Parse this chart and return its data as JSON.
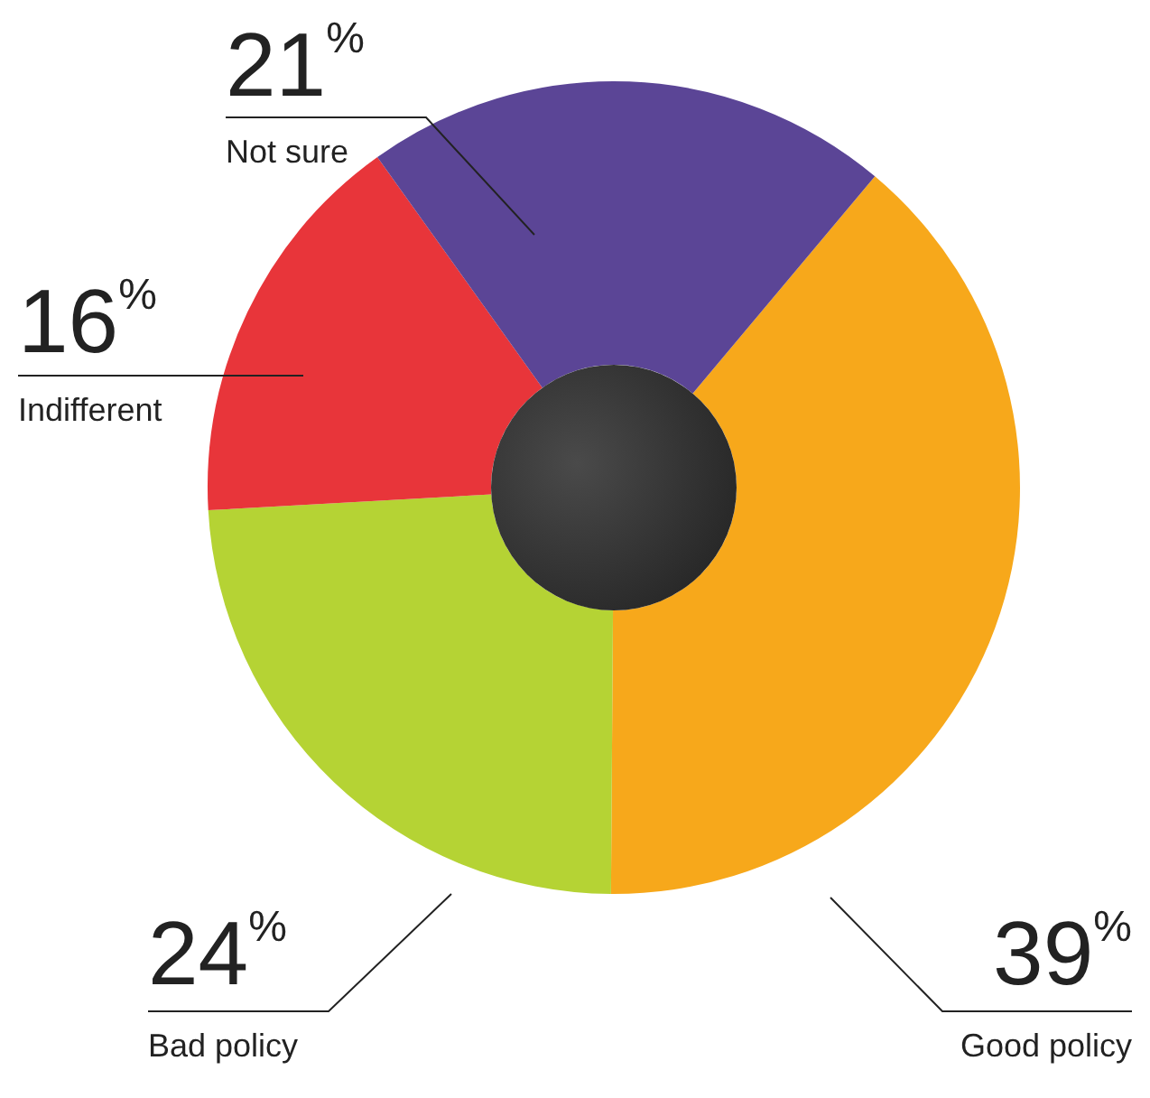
{
  "chart_data": {
    "type": "donut",
    "categories": [
      "Good policy",
      "Bad policy",
      "Indifferent",
      "Not sure"
    ],
    "values": [
      39,
      24,
      16,
      21
    ],
    "value_labels": [
      "39%",
      "24%",
      "16%",
      "21%"
    ],
    "colors": [
      "#f7a81b",
      "#b5d334",
      "#e8353a",
      "#5b4596"
    ],
    "legend": false
  }
}
